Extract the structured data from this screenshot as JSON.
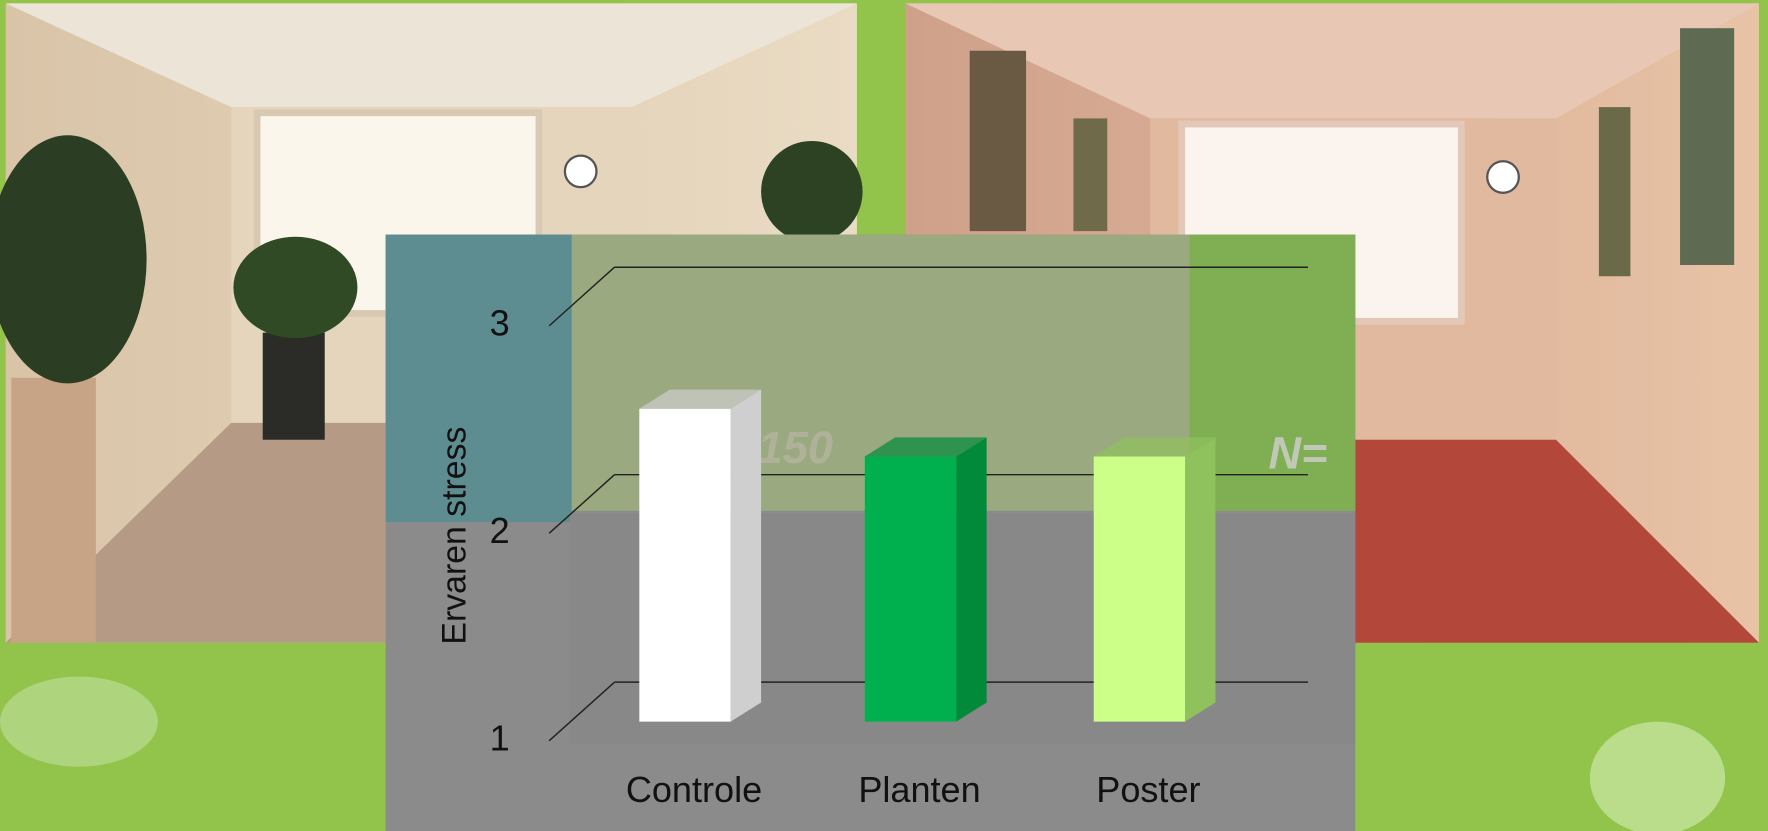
{
  "chart_data": {
    "type": "bar3d",
    "y_label": "Ervaren stress",
    "categories": [
      "Controle",
      "Planten",
      "Poster"
    ],
    "values": [
      2.41,
      2.18,
      2.18
    ],
    "colors": [
      "#ffffff",
      "#00b04f",
      "#ccff88"
    ],
    "side_colors": [
      "#cfcfcf",
      "#008a3a",
      "#8fc25c"
    ],
    "ylim": [
      1,
      3
    ],
    "yticks": [
      1,
      2,
      3
    ],
    "grid": true
  },
  "overlay_texts": [
    "150",
    "N="
  ]
}
